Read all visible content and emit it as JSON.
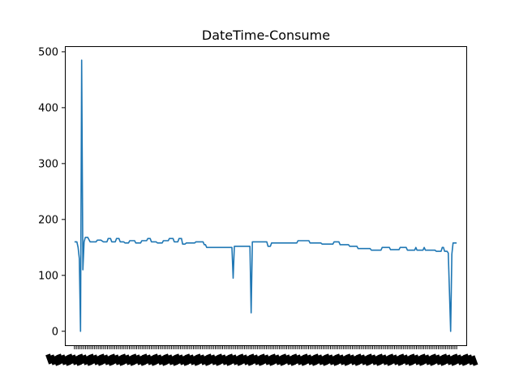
{
  "chart_data": {
    "type": "line",
    "title": "DateTime-Consume",
    "xlabel": "",
    "ylabel": "",
    "ylim": [
      -25,
      510
    ],
    "yticks": [
      0,
      100,
      200,
      300,
      400,
      500
    ],
    "grid": false,
    "legend": "none",
    "x_tick_labels_note": "x tick labels are overlapping and illegible",
    "series": [
      {
        "color": "#1f77b4",
        "points": [
          [
            0,
            160
          ],
          [
            2,
            160
          ],
          [
            3,
            150
          ],
          [
            4,
            130
          ],
          [
            5,
            0
          ],
          [
            6,
            485
          ],
          [
            7,
            110
          ],
          [
            8,
            160
          ],
          [
            9,
            168
          ],
          [
            11,
            168
          ],
          [
            13,
            160
          ],
          [
            18,
            160
          ],
          [
            19,
            163
          ],
          [
            22,
            163
          ],
          [
            24,
            160
          ],
          [
            27,
            160
          ],
          [
            28,
            166
          ],
          [
            30,
            166
          ],
          [
            31,
            160
          ],
          [
            34,
            160
          ],
          [
            35,
            166
          ],
          [
            37,
            166
          ],
          [
            38,
            160
          ],
          [
            41,
            160
          ],
          [
            42,
            158
          ],
          [
            45,
            158
          ],
          [
            46,
            162
          ],
          [
            50,
            162
          ],
          [
            51,
            158
          ],
          [
            55,
            158
          ],
          [
            56,
            162
          ],
          [
            60,
            162
          ],
          [
            61,
            166
          ],
          [
            63,
            166
          ],
          [
            64,
            160
          ],
          [
            68,
            160
          ],
          [
            69,
            158
          ],
          [
            73,
            158
          ],
          [
            74,
            162
          ],
          [
            78,
            162
          ],
          [
            79,
            166
          ],
          [
            82,
            166
          ],
          [
            83,
            160
          ],
          [
            86,
            160
          ],
          [
            87,
            166
          ],
          [
            89,
            166
          ],
          [
            90,
            156
          ],
          [
            92,
            156
          ],
          [
            93,
            158
          ],
          [
            100,
            158
          ],
          [
            101,
            160
          ],
          [
            107,
            160
          ],
          [
            108,
            155
          ],
          [
            109,
            155
          ],
          [
            110,
            150
          ],
          [
            112,
            150
          ],
          [
            113,
            150
          ],
          [
            131,
            150
          ],
          [
            132,
            95
          ],
          [
            133,
            152
          ],
          [
            146,
            152
          ],
          [
            147,
            33
          ],
          [
            148,
            160
          ],
          [
            160,
            160
          ],
          [
            161,
            152
          ],
          [
            163,
            152
          ],
          [
            164,
            158
          ],
          [
            185,
            158
          ],
          [
            186,
            162
          ],
          [
            195,
            162
          ],
          [
            196,
            158
          ],
          [
            205,
            158
          ],
          [
            206,
            156
          ],
          [
            215,
            156
          ],
          [
            216,
            160
          ],
          [
            220,
            160
          ],
          [
            221,
            155
          ],
          [
            228,
            155
          ],
          [
            229,
            152
          ],
          [
            235,
            152
          ],
          [
            236,
            148
          ],
          [
            246,
            148
          ],
          [
            247,
            145
          ],
          [
            255,
            145
          ],
          [
            256,
            150
          ],
          [
            262,
            150
          ],
          [
            263,
            146
          ],
          [
            270,
            146
          ],
          [
            271,
            150
          ],
          [
            276,
            150
          ],
          [
            277,
            145
          ],
          [
            283,
            145
          ],
          [
            284,
            150
          ],
          [
            285,
            145
          ],
          [
            290,
            145
          ],
          [
            291,
            150
          ],
          [
            292,
            145
          ],
          [
            300,
            145
          ],
          [
            301,
            143
          ],
          [
            305,
            143
          ],
          [
            306,
            150
          ],
          [
            307,
            150
          ],
          [
            308,
            143
          ],
          [
            310,
            143
          ],
          [
            311,
            140
          ],
          [
            313,
            0
          ],
          [
            314,
            138
          ],
          [
            315,
            158
          ],
          [
            318,
            158
          ]
        ]
      }
    ],
    "xlim": [
      -8,
      326
    ]
  }
}
